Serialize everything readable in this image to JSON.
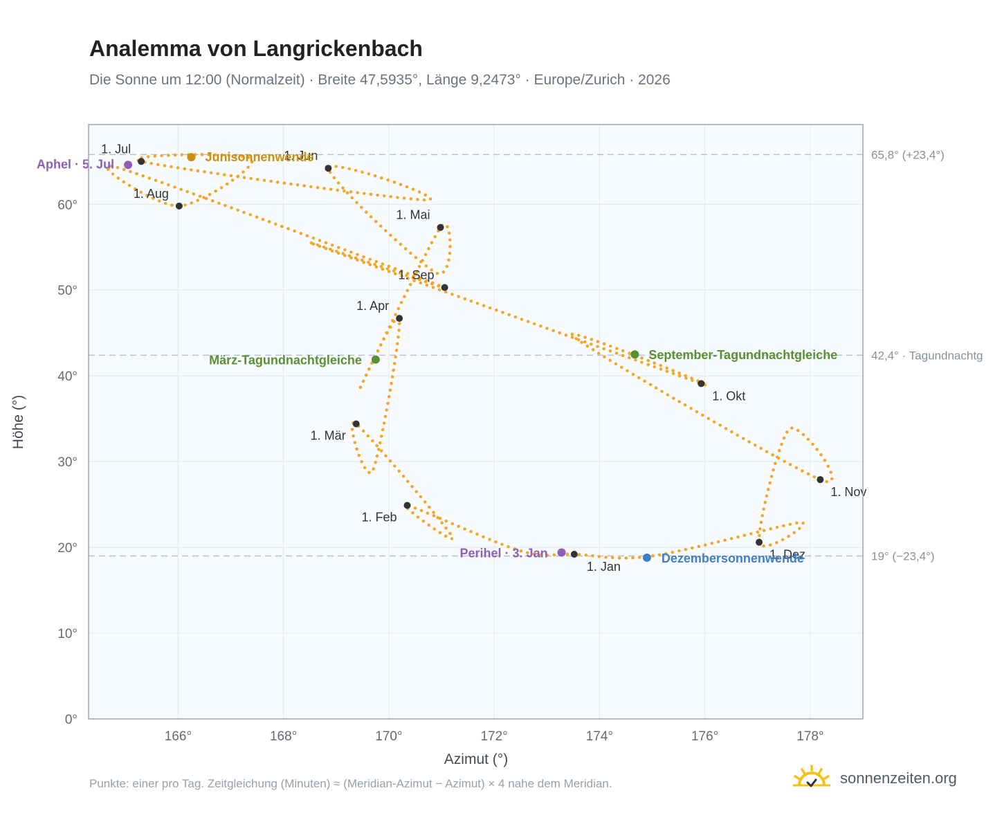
{
  "title": "Analemma von Langrickenbach",
  "subtitle": "Die Sonne um 12:00 (Normalzeit) · Breite 47,5935°, Länge 9,2473° · Europe/Zurich · 2026",
  "footnote": "Punkte: einer pro Tag. Zeitgleichung (Minuten) ≈ (Meridian-Azimut − Azimut) × 4 nahe dem Meridian.",
  "brand": {
    "name": "sonnenzeiten.org",
    "logo_icon": "sun-logo-icon"
  },
  "colors": {
    "curve": "#f2a62a",
    "month_dot": "#333333",
    "equinox": "#5a8f32",
    "june": "#c8900e",
    "december": "#3f7fc4",
    "apsis": "#8e5fb5",
    "ref_line": "#b8c2cc",
    "plot_bg": "#f8fbfd"
  },
  "chart_data": {
    "type": "scatter",
    "xlabel": "Azimut (°)",
    "ylabel": "Höhe (°)",
    "xlim": [
      164.3,
      179.0
    ],
    "ylim": [
      0,
      69.3
    ],
    "x_ticks": [
      166,
      168,
      170,
      172,
      174,
      176,
      178
    ],
    "x_tick_labels": [
      "166°",
      "168°",
      "170°",
      "172°",
      "174°",
      "176°",
      "178°"
    ],
    "y_ticks": [
      0,
      10,
      20,
      30,
      40,
      50,
      60
    ],
    "y_tick_labels": [
      "0°",
      "10°",
      "20°",
      "30°",
      "40°",
      "50°",
      "60°"
    ],
    "grid": true,
    "reference_lines": [
      {
        "y": 65.8,
        "label": "65,8° (+23,4°)"
      },
      {
        "y": 42.4,
        "label": "42,4° · Tagundnachtg"
      },
      {
        "y": 19.0,
        "label": "19° (−23,4°)"
      }
    ],
    "curve_points": [
      {
        "label": "1. Jan",
        "x": 173.52,
        "y": 19.2,
        "dx": 18,
        "dy": 24,
        "anchor": "start"
      },
      {
        "label": "1. Feb",
        "x": 170.35,
        "y": 24.9,
        "dx": -15,
        "dy": 23,
        "anchor": "end"
      },
      {
        "label": "1. Mär",
        "x": 169.38,
        "y": 34.4,
        "dx": -15,
        "dy": 23,
        "anchor": "end"
      },
      {
        "label": "1. Apr",
        "x": 170.2,
        "y": 46.7,
        "dx": -15,
        "dy": -12,
        "anchor": "end"
      },
      {
        "label": "1. Mai",
        "x": 170.98,
        "y": 57.3,
        "dx": -15,
        "dy": -12,
        "anchor": "end"
      },
      {
        "label": "1. Jun",
        "x": 168.85,
        "y": 64.2,
        "dx": -15,
        "dy": -12,
        "anchor": "end"
      },
      {
        "label": "1. Jul",
        "x": 165.3,
        "y": 65.0,
        "dx": -15,
        "dy": -12,
        "anchor": "end"
      },
      {
        "label": "1. Aug",
        "x": 166.02,
        "y": 59.8,
        "dx": -15,
        "dy": -12,
        "anchor": "end"
      },
      {
        "label": "1. Sep",
        "x": 171.06,
        "y": 50.3,
        "dx": -15,
        "dy": -12,
        "anchor": "end"
      },
      {
        "label": "1. Okt",
        "x": 175.93,
        "y": 39.1,
        "dx": 16,
        "dy": 24,
        "anchor": "start"
      },
      {
        "label": "1. Nov",
        "x": 178.19,
        "y": 27.9,
        "dx": 15,
        "dy": 24,
        "anchor": "start"
      },
      {
        "label": "1. Dez",
        "x": 177.03,
        "y": 20.6,
        "dx": 15,
        "dy": 24,
        "anchor": "start"
      },
      {
        "label": "",
        "x": 173.52,
        "y": 19.2
      }
    ],
    "curve_guides": [
      {
        "x": 172.5,
        "y": 19.6
      },
      {
        "x": 171.2,
        "y": 21.3
      },
      {
        "x": 169.7,
        "y": 29.0
      },
      {
        "x": 169.45,
        "y": 38.5
      },
      {
        "x": 170.9,
        "y": 52.0
      },
      {
        "x": 170.7,
        "y": 60.5
      },
      {
        "x": 167.4,
        "y": 65.3
      },
      {
        "x": 164.9,
        "y": 64.2
      },
      {
        "x": 168.6,
        "y": 55.3
      },
      {
        "x": 173.5,
        "y": 44.6
      },
      {
        "x": 177.6,
        "y": 33.8
      },
      {
        "x": 177.8,
        "y": 22.9
      },
      {
        "x": 175.0,
        "y": 19.0
      }
    ],
    "events": [
      {
        "label": "Aphel · 5. Jul",
        "x": 165.05,
        "y": 64.6,
        "color": "#8e5fb5",
        "dx": -20,
        "dy": 5,
        "anchor": "end"
      },
      {
        "label": "Junisonnenwende",
        "x": 166.25,
        "y": 65.5,
        "color": "#c8900e",
        "dx": 20,
        "dy": 6,
        "anchor": "start"
      },
      {
        "label": "März-Tagundnachtgleiche",
        "x": 169.75,
        "y": 41.9,
        "color": "#5a8f32",
        "dx": -20,
        "dy": 7,
        "anchor": "end"
      },
      {
        "label": "September-Tagundnachtgleiche",
        "x": 174.67,
        "y": 42.5,
        "color": "#5a8f32",
        "dx": 20,
        "dy": 7,
        "anchor": "start"
      },
      {
        "label": "Perihel · 3. Jan",
        "x": 173.28,
        "y": 19.4,
        "color": "#8e5fb5",
        "dx": -20,
        "dy": 7,
        "anchor": "end"
      },
      {
        "label": "Dezembersonnenwende",
        "x": 174.9,
        "y": 18.8,
        "color": "#3f7fc4",
        "dx": 21,
        "dy": 7,
        "anchor": "start"
      }
    ]
  }
}
